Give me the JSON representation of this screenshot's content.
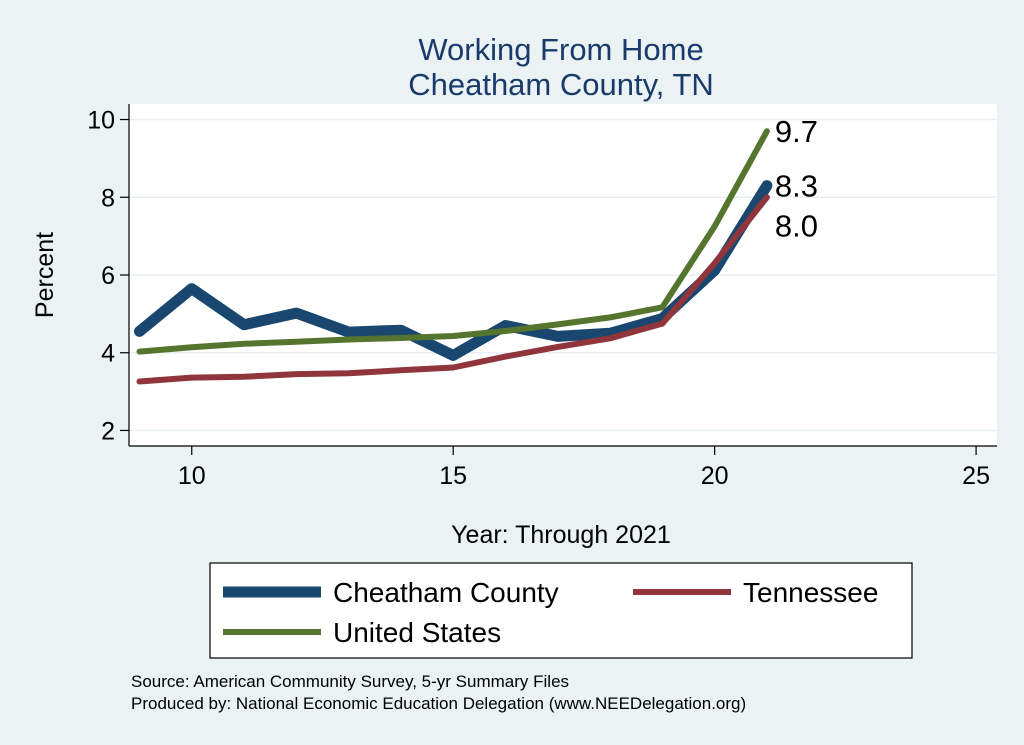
{
  "chart_data": {
    "type": "line",
    "title": "Working From Home",
    "subtitle": "Cheatham County, TN",
    "xlabel": "Year: Through 2021",
    "ylabel": "Percent",
    "xlim": [
      8.8,
      25.4
    ],
    "ylim": [
      1.6,
      10.4
    ],
    "x_ticks": [
      10,
      15,
      20,
      25
    ],
    "y_ticks": [
      2,
      4,
      6,
      8,
      10
    ],
    "grid": "horizontal",
    "x": [
      9,
      10,
      11,
      12,
      13,
      14,
      15,
      16,
      17,
      18,
      19,
      20,
      21
    ],
    "series": [
      {
        "name": "Cheatham County",
        "color": "#1a476f",
        "values": [
          4.55,
          5.65,
          4.72,
          5.02,
          4.53,
          4.58,
          3.93,
          4.7,
          4.42,
          4.5,
          4.88,
          6.12,
          8.3
        ],
        "end_label": "8.3"
      },
      {
        "name": "Tennessee",
        "color": "#90353b",
        "values": [
          3.26,
          3.36,
          3.38,
          3.45,
          3.47,
          3.55,
          3.62,
          3.9,
          4.15,
          4.37,
          4.75,
          6.3,
          8.0
        ],
        "end_label": "8.0"
      },
      {
        "name": "United States",
        "color": "#55752f",
        "values": [
          4.03,
          4.14,
          4.23,
          4.28,
          4.34,
          4.38,
          4.43,
          4.56,
          4.73,
          4.91,
          5.17,
          7.25,
          9.7
        ],
        "end_label": "9.7"
      }
    ],
    "legend_position": "bottom"
  },
  "notes": [
    "Source: American Community Survey, 5-yr Summary Files",
    "Produced by: National Economic Education Delegation (www.NEEDelegation.org)"
  ]
}
